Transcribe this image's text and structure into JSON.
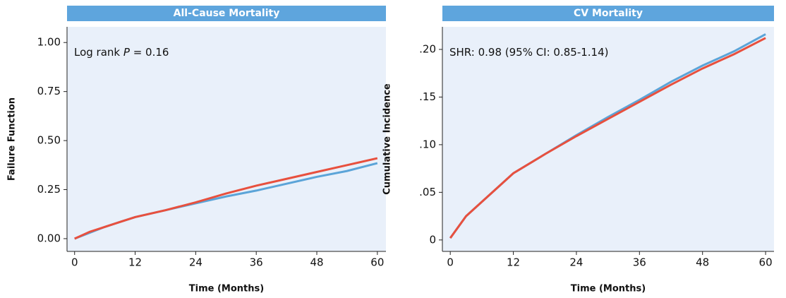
{
  "chart_data": [
    {
      "type": "line",
      "title": "All-Cause Mortality",
      "x_label": "Time (Months)",
      "y_label": "Failure Function",
      "annotation": [
        "Log rank ",
        "P",
        " = 0.16"
      ],
      "x": [
        0,
        3,
        6,
        9,
        12,
        18,
        24,
        30,
        36,
        42,
        48,
        54,
        60
      ],
      "series": [
        {
          "color": "#5ba4d8",
          "values": [
            0,
            0.03,
            0.06,
            0.085,
            0.11,
            0.145,
            0.18,
            0.215,
            0.245,
            0.28,
            0.315,
            0.345,
            0.385
          ]
        },
        {
          "color": "#e8503e",
          "values": [
            0,
            0.035,
            0.06,
            0.085,
            0.11,
            0.145,
            0.185,
            0.23,
            0.27,
            0.305,
            0.34,
            0.375,
            0.41
          ]
        }
      ],
      "xlim": [
        -1.5,
        61.7
      ],
      "ylim": [
        -0.065,
        1.08
      ],
      "xticks": [
        0,
        12,
        24,
        36,
        48,
        60
      ],
      "yticks": [
        {
          "value": 0,
          "label": "0.00"
        },
        {
          "value": 0.25,
          "label": "0.25"
        },
        {
          "value": 0.5,
          "label": "0.50"
        },
        {
          "value": 0.75,
          "label": "0.75"
        },
        {
          "value": 1,
          "label": "1.00"
        }
      ]
    },
    {
      "type": "line",
      "title": "CV Mortality",
      "x_label": "Time (Months)",
      "y_label": "Cumulative Incidence",
      "annotation": [
        "SHR: 0.98 (95% CI: 0.85-1.14)"
      ],
      "x": [
        0,
        3,
        6,
        9,
        12,
        18,
        24,
        30,
        36,
        42,
        48,
        54,
        60
      ],
      "series": [
        {
          "color": "#5ba4d8",
          "values": [
            0.002,
            0.025,
            0.04,
            0.055,
            0.07,
            0.09,
            0.11,
            0.129,
            0.147,
            0.166,
            0.183,
            0.198,
            0.216
          ]
        },
        {
          "color": "#e8503e",
          "values": [
            0.002,
            0.025,
            0.04,
            0.055,
            0.07,
            0.09,
            0.109,
            0.127,
            0.145,
            0.163,
            0.18,
            0.195,
            0.212
          ]
        }
      ],
      "xlim": [
        -1.5,
        61.6
      ],
      "ylim": [
        -0.012,
        0.2237
      ],
      "xticks": [
        0,
        12,
        24,
        36,
        48,
        60
      ],
      "yticks": [
        {
          "value": 0,
          "label": "0"
        },
        {
          "value": 0.05,
          "label": ".05"
        },
        {
          "value": 0.1,
          "label": ".10"
        },
        {
          "value": 0.15,
          "label": ".15"
        },
        {
          "value": 0.2,
          "label": ".20"
        }
      ]
    }
  ]
}
